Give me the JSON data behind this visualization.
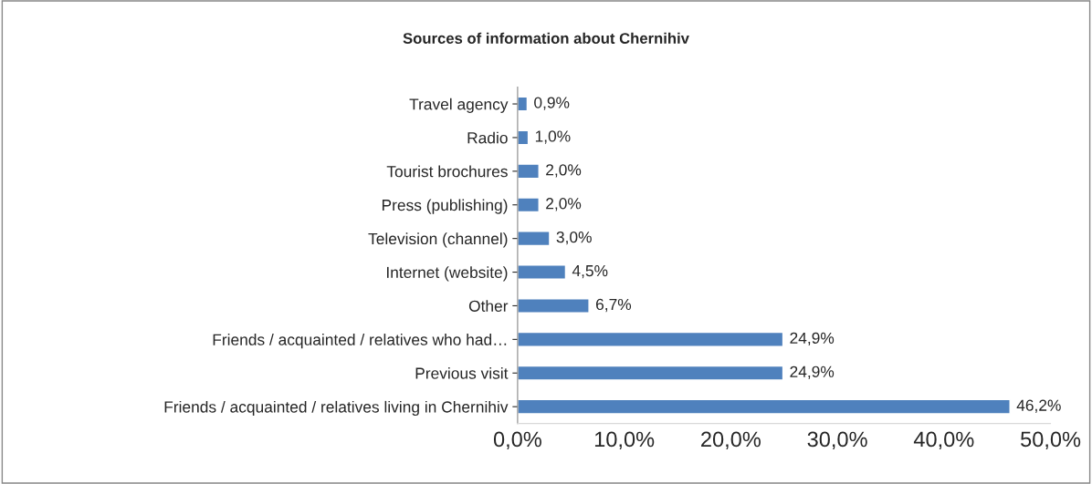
{
  "chart_data": {
    "type": "bar",
    "orientation": "horizontal",
    "title": "Sources of information about Chernihiv",
    "categories": [
      "Travel agency",
      "Radio",
      "Tourist brochures",
      "Press (publishing)",
      "Television (channel)",
      "Internet (website)",
      "Other",
      "Friends / acquainted / relatives who had…",
      "Previous visit",
      "Friends / acquainted / relatives living in Chernihiv"
    ],
    "values": [
      0.9,
      1.0,
      2.0,
      2.0,
      3.0,
      4.5,
      6.7,
      24.9,
      24.9,
      46.2
    ],
    "value_labels": [
      "0,9%",
      "1,0%",
      "2,0%",
      "2,0%",
      "3,0%",
      "4,5%",
      "6,7%",
      "24,9%",
      "24,9%",
      "46,2%"
    ],
    "color": "#4f81bd",
    "xlim": [
      0,
      50
    ],
    "xticks": [
      {
        "value": 0,
        "label": "0,0%"
      },
      {
        "value": 10,
        "label": "10,0%"
      },
      {
        "value": 20,
        "label": "20,0%"
      },
      {
        "value": 30,
        "label": "30,0%"
      },
      {
        "value": 40,
        "label": "40,0%"
      },
      {
        "value": 50,
        "label": "50,0%"
      }
    ],
    "grid": false,
    "legend": false
  }
}
